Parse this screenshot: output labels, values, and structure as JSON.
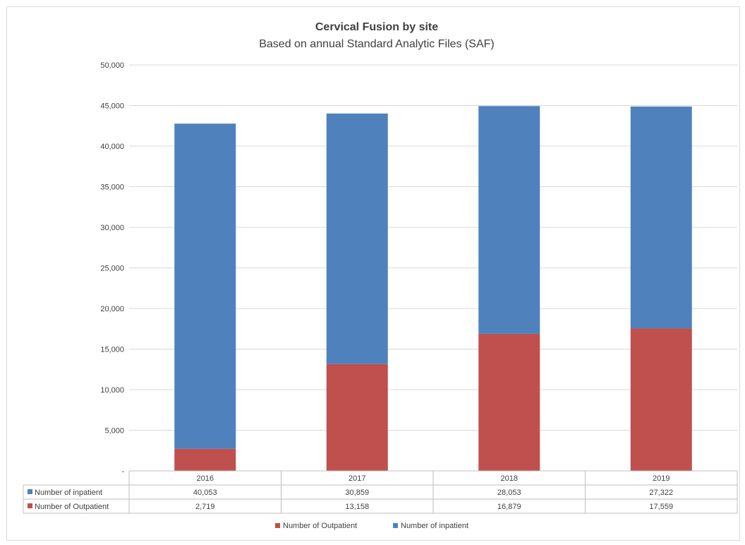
{
  "chart_data": {
    "type": "bar",
    "stacked": true,
    "title": "Cervical Fusion by site",
    "subtitle": "Based on annual Standard Analytic Files (SAF)",
    "categories": [
      "2016",
      "2017",
      "2018",
      "2019"
    ],
    "series": [
      {
        "name": "Number of inpatient",
        "color": "#4f81bd",
        "values": [
          40053,
          30859,
          28053,
          27322
        ],
        "labels": [
          "40,053",
          "30,859",
          "28,053",
          "27,322"
        ]
      },
      {
        "name": "Number of Outpatient",
        "color": "#c0504d",
        "values": [
          2719,
          13158,
          16879,
          17559
        ],
        "labels": [
          "2,719",
          "13,158",
          "16,879",
          "17,559"
        ]
      }
    ],
    "ylim": [
      0,
      50000
    ],
    "yticks": [
      0,
      5000,
      10000,
      15000,
      20000,
      25000,
      30000,
      35000,
      40000,
      45000,
      50000
    ],
    "ytick_labels": [
      "-",
      "5,000",
      "10,000",
      "15,000",
      "20,000",
      "25,000",
      "30,000",
      "35,000",
      "40,000",
      "45,000",
      "50,000"
    ],
    "grid": true,
    "data_table": true,
    "legend_position": "bottom",
    "legend_order": [
      "Number of Outpatient",
      "Number of inpatient"
    ]
  }
}
